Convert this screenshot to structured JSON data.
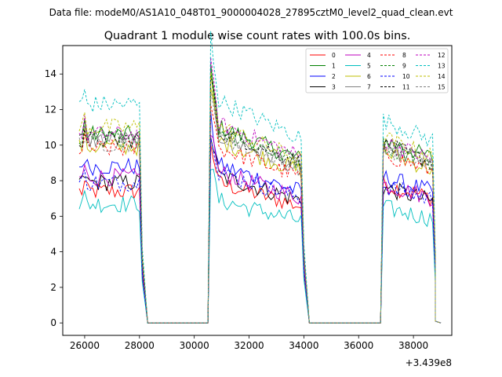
{
  "suptitle": "Data file: modeM0/AS1A10_048T01_9000004028_27895cztM0_level2_quad_clean.evt",
  "chart_data": {
    "type": "line",
    "title": "Quadrant 1 module wise count rates with 100.0s bins.",
    "xlabel": "",
    "ylabel": "",
    "x_offset_label": "+3.439e8",
    "xlim": [
      25200,
      39400
    ],
    "ylim": [
      -0.7,
      15.6
    ],
    "xticks": [
      26000,
      28000,
      30000,
      32000,
      34000,
      36000,
      38000
    ],
    "yticks": [
      0,
      2,
      4,
      6,
      8,
      10,
      12,
      14
    ],
    "legend_position": "top-right",
    "legend_columns": 4,
    "segments": [
      {
        "start": 25800,
        "end": 28000,
        "decay": 0.0
      },
      {
        "start": 30600,
        "end": 33900,
        "decay": 0.18
      },
      {
        "start": 36900,
        "end": 38700,
        "decay": 0.1
      }
    ],
    "gaps": [
      {
        "from": 28000,
        "to": 28300,
        "value": 0
      },
      {
        "from": 28300,
        "to": 30500,
        "value": 0
      },
      {
        "from": 33900,
        "to": 34100,
        "value": 0
      },
      {
        "from": 34100,
        "to": 36800,
        "value": 0
      },
      {
        "from": 38700,
        "to": 38800,
        "value": 0
      }
    ],
    "bin_size_s": 100,
    "series": [
      {
        "name": "0",
        "color": "#ff0000",
        "style": "solid",
        "level": [
          7.4,
          8.0,
          7.8
        ]
      },
      {
        "name": "1",
        "color": "#008000",
        "style": "solid",
        "level": [
          10.6,
          11.2,
          10.3
        ]
      },
      {
        "name": "2",
        "color": "#0000ff",
        "style": "solid",
        "level": [
          8.8,
          9.0,
          8.2
        ]
      },
      {
        "name": "3",
        "color": "#000000",
        "style": "solid",
        "level": [
          7.9,
          8.4,
          7.6
        ]
      },
      {
        "name": "4",
        "color": "#bf00bf",
        "style": "solid",
        "level": [
          8.2,
          8.6,
          7.8
        ]
      },
      {
        "name": "5",
        "color": "#00bfbf",
        "style": "solid",
        "level": [
          6.7,
          7.0,
          6.5
        ]
      },
      {
        "name": "6",
        "color": "#bfbf00",
        "style": "solid",
        "level": [
          9.9,
          10.4,
          9.6
        ]
      },
      {
        "name": "7",
        "color": "#808080",
        "style": "solid",
        "level": [
          10.3,
          10.7,
          9.9
        ]
      },
      {
        "name": "8",
        "color": "#ff0000",
        "style": "dashed",
        "level": [
          9.8,
          10.0,
          9.5
        ]
      },
      {
        "name": "9",
        "color": "#008000",
        "style": "dashed",
        "level": [
          10.4,
          11.0,
          10.0
        ]
      },
      {
        "name": "10",
        "color": "#0000ff",
        "style": "dashed",
        "level": [
          7.9,
          8.6,
          7.7
        ]
      },
      {
        "name": "11",
        "color": "#000000",
        "style": "dashed",
        "level": [
          10.3,
          11.0,
          10.0
        ]
      },
      {
        "name": "12",
        "color": "#bf00bf",
        "style": "dashed",
        "level": [
          10.6,
          11.4,
          10.2
        ]
      },
      {
        "name": "13",
        "color": "#00bfbf",
        "style": "dashed",
        "level": [
          12.3,
          12.7,
          11.4
        ]
      },
      {
        "name": "14",
        "color": "#bfbf00",
        "style": "dashed",
        "level": [
          11.0,
          11.2,
          10.4
        ]
      },
      {
        "name": "15",
        "color": "#808080",
        "style": "dashed",
        "level": [
          10.1,
          10.6,
          9.8
        ]
      }
    ]
  }
}
